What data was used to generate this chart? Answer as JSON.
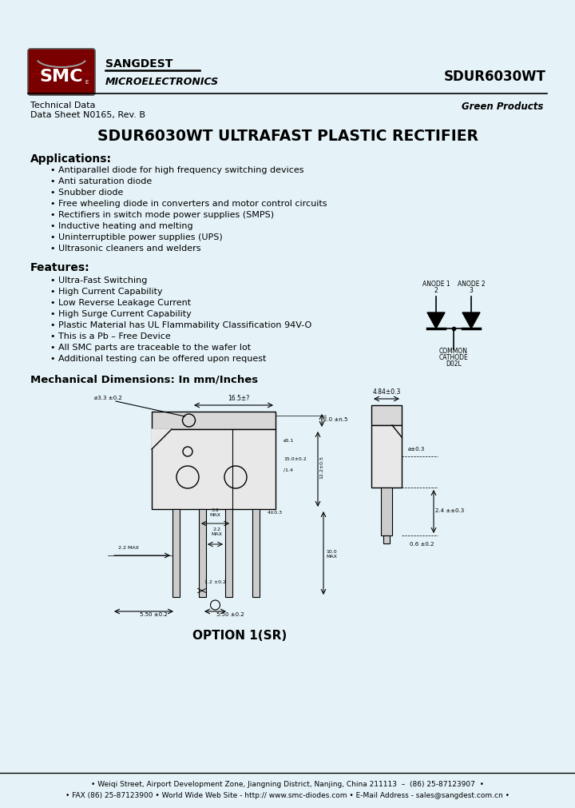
{
  "bg_color": "#e5f3f8",
  "title_text": "SDUR6030WT ULTRAFAST PLASTIC RECTIFIER",
  "part_number": "SDUR6030WT",
  "company_name": "SANGDEST",
  "company_sub": "MICROELECTRONICS",
  "tech_data": "Technical Data",
  "data_sheet": "Data Sheet N0165, Rev. B",
  "green_products": "Green Products",
  "applications_header": "Applications:",
  "applications": [
    "Antiparallel diode for high frequency switching devices",
    "Anti saturation diode",
    "Snubber diode",
    "Free wheeling diode in converters and motor control circuits",
    "Rectifiers in switch mode power supplies (SMPS)",
    "Inductive heating and melting",
    "Uninterruptible power supplies (UPS)",
    "Ultrasonic cleaners and welders"
  ],
  "features_header": "Features:",
  "features": [
    "Ultra-Fast Switching",
    "High Current Capability",
    "Low Reverse Leakage Current",
    "High Surge Current Capability",
    "Plastic Material has UL Flammability Classification 94V-O",
    "This is a Pb – Free Device",
    "All SMC parts are traceable to the wafer lot",
    "Additional testing can be offered upon request"
  ],
  "mech_header": "Mechanical Dimensions: In mm/Inches",
  "option_text": "OPTION 1(SR)",
  "footer1": "• Weiqi Street, Airport Development Zone, Jiangning District, Nanjing, China 211113  –  (86) 25-87123907  •",
  "footer2": "• FAX (86) 25-87123900 • World Wide Web Site - http:// www.smc-diodes.com • E-Mail Address - sales@sangdest.com.cn •"
}
